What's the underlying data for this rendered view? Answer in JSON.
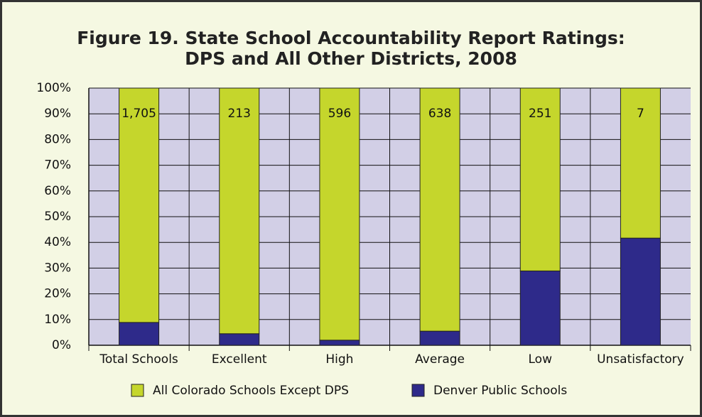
{
  "chart_data": {
    "type": "bar",
    "stacked": "percent",
    "title": [
      "Figure 19. State School Accountability Report Ratings:",
      "DPS and All Other Districts, 2008"
    ],
    "categories": [
      "Total Schools",
      "Excellent",
      "High",
      "Average",
      "Low",
      "Unsatisfactory"
    ],
    "series": [
      {
        "name": "Denver Public Schools",
        "color": "#2e2a8a",
        "values": [
          166,
          10,
          12,
          37,
          102,
          5
        ]
      },
      {
        "name": "All Colorado Schools Except DPS",
        "color": "#c5d62c",
        "values": [
          1705,
          213,
          596,
          638,
          251,
          7
        ],
        "value_labels": [
          "1,705",
          "213",
          "596",
          "638",
          "251",
          "7"
        ]
      }
    ],
    "ylim": [
      0,
      100
    ],
    "yticks": [
      {
        "value": 0,
        "label": "0%"
      },
      {
        "value": 10,
        "label": "10%"
      },
      {
        "value": 20,
        "label": "20%"
      },
      {
        "value": 30,
        "label": "30%"
      },
      {
        "value": 40,
        "label": "40%"
      },
      {
        "value": 50,
        "label": "50%"
      },
      {
        "value": 60,
        "label": "60%"
      },
      {
        "value": 70,
        "label": "70%"
      },
      {
        "value": 80,
        "label": "80%"
      },
      {
        "value": 90,
        "label": "90%"
      },
      {
        "value": 100,
        "label": "100%"
      }
    ],
    "grid": true
  }
}
